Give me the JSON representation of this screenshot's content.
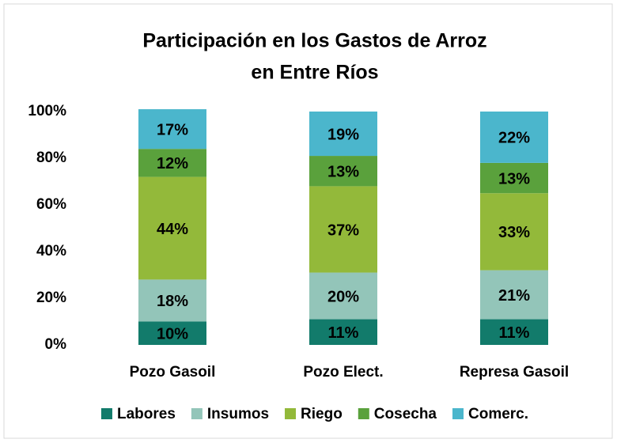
{
  "chart_data": {
    "type": "stacked_bar",
    "title": [
      "Participación en los Gastos de Arroz",
      "en Entre Ríos"
    ],
    "categories": [
      "Pozo Gasoil",
      "Pozo Elect.",
      "Represa Gasoil"
    ],
    "series": [
      {
        "name": "Labores",
        "color": "#127b6b",
        "values": [
          10,
          11,
          11
        ],
        "value_labels": [
          "10%",
          "11%",
          "11%"
        ]
      },
      {
        "name": "Insumos",
        "color": "#93c5b9",
        "values": [
          18,
          20,
          21
        ],
        "value_labels": [
          "18%",
          "20%",
          "21%"
        ]
      },
      {
        "name": "Riego",
        "color": "#93b93a",
        "values": [
          44,
          37,
          33
        ],
        "value_labels": [
          "44%",
          "37%",
          "33%"
        ]
      },
      {
        "name": "Cosecha",
        "color": "#5aa13c",
        "values": [
          12,
          13,
          13
        ],
        "value_labels": [
          "12%",
          "13%",
          "13%"
        ]
      },
      {
        "name": "Comerc.",
        "color": "#4bb6cc",
        "values": [
          17,
          19,
          22
        ],
        "value_labels": [
          "17%",
          "19%",
          "22%"
        ]
      }
    ],
    "ylim": [
      0,
      100
    ],
    "yticks": [
      {
        "value": 0,
        "label": "0%"
      },
      {
        "value": 20,
        "label": "20%"
      },
      {
        "value": 40,
        "label": "40%"
      },
      {
        "value": 60,
        "label": "60%"
      },
      {
        "value": 80,
        "label": "80%"
      },
      {
        "value": 100,
        "label": "100%"
      }
    ],
    "grid": false,
    "legend": "bottom"
  }
}
